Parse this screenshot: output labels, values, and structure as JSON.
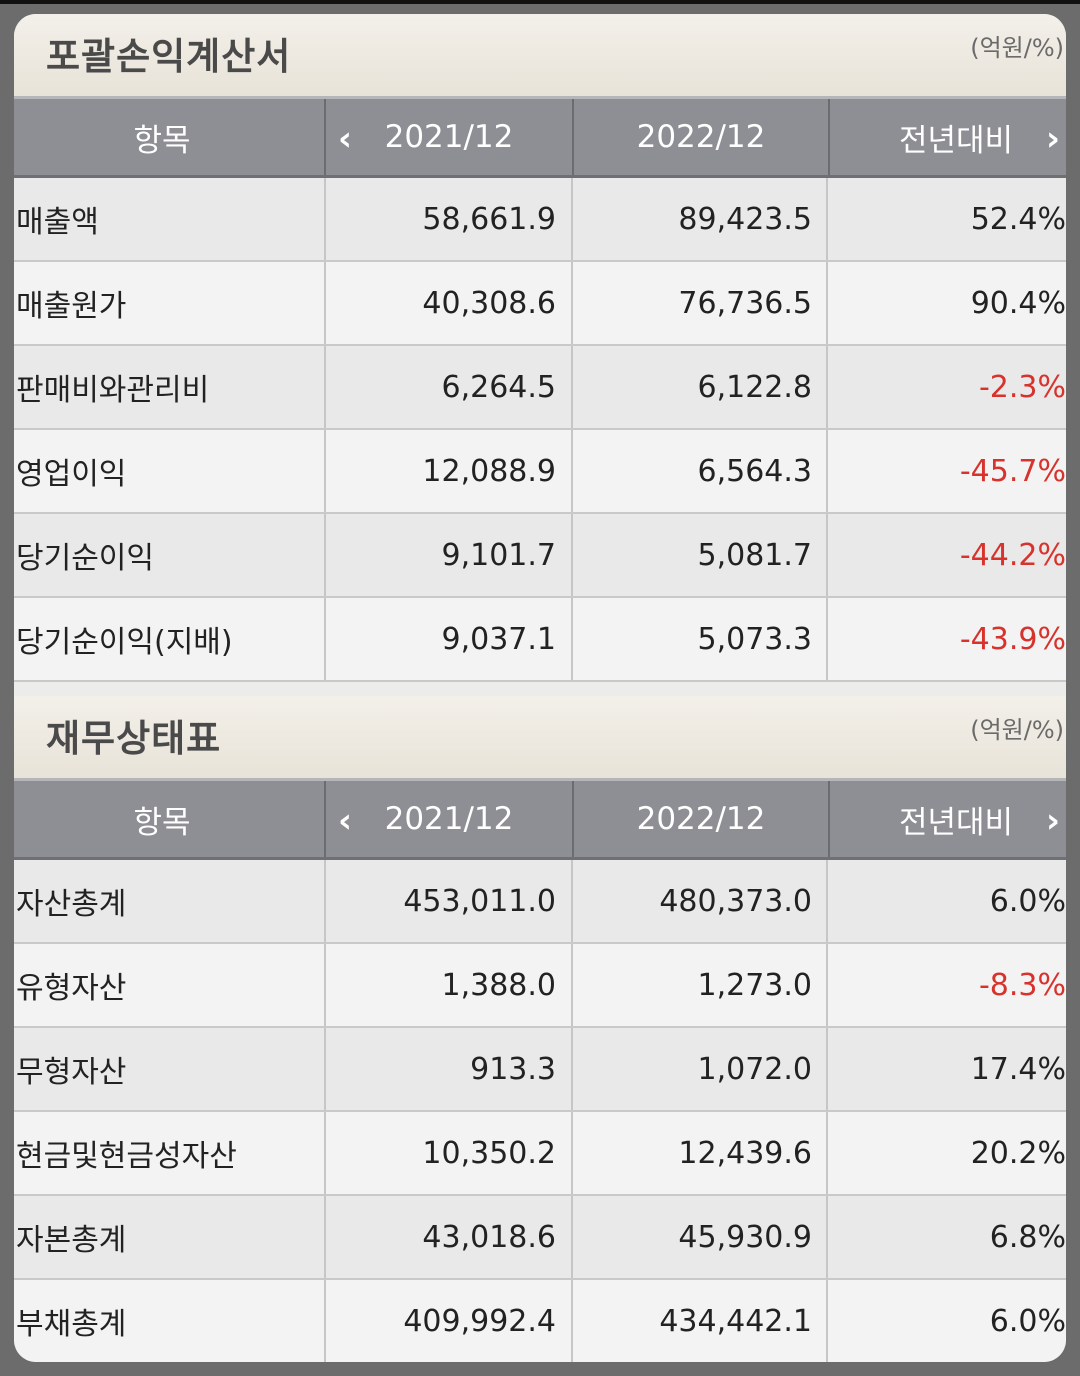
{
  "income": {
    "title": "포괄손익계산서",
    "unit": "(억원/%)",
    "headers": {
      "item": "항목",
      "col1": "2021/12",
      "col2": "2022/12",
      "col3": "전년대비"
    },
    "rows": [
      {
        "label": "매출액",
        "v1": "58,661.9",
        "v2": "89,423.5",
        "yoy": "52.4%",
        "negative": false
      },
      {
        "label": "매출원가",
        "v1": "40,308.6",
        "v2": "76,736.5",
        "yoy": "90.4%",
        "negative": false
      },
      {
        "label": "판매비와관리비",
        "v1": "6,264.5",
        "v2": "6,122.8",
        "yoy": "-2.3%",
        "negative": true
      },
      {
        "label": "영업이익",
        "v1": "12,088.9",
        "v2": "6,564.3",
        "yoy": "-45.7%",
        "negative": true
      },
      {
        "label": "당기순이익",
        "v1": "9,101.7",
        "v2": "5,081.7",
        "yoy": "-44.2%",
        "negative": true
      },
      {
        "label": "당기순이익(지배)",
        "v1": "9,037.1",
        "v2": "5,073.3",
        "yoy": "-43.9%",
        "negative": true
      }
    ]
  },
  "balance": {
    "title": "재무상태표",
    "unit": "(억원/%)",
    "headers": {
      "item": "항목",
      "col1": "2021/12",
      "col2": "2022/12",
      "col3": "전년대비"
    },
    "rows": [
      {
        "label": "자산총계",
        "v1": "453,011.0",
        "v2": "480,373.0",
        "yoy": "6.0%",
        "negative": false
      },
      {
        "label": "유형자산",
        "v1": "1,388.0",
        "v2": "1,273.0",
        "yoy": "-8.3%",
        "negative": true
      },
      {
        "label": "무형자산",
        "v1": "913.3",
        "v2": "1,072.0",
        "yoy": "17.4%",
        "negative": false
      },
      {
        "label": "현금및현금성자산",
        "v1": "10,350.2",
        "v2": "12,439.6",
        "yoy": "20.2%",
        "negative": false
      },
      {
        "label": "자본총계",
        "v1": "43,018.6",
        "v2": "45,930.9",
        "yoy": "6.8%",
        "negative": false
      },
      {
        "label": "부채총계",
        "v1": "409,992.4",
        "v2": "434,442.1",
        "yoy": "6.0%",
        "negative": false
      }
    ]
  },
  "icons": {
    "prev": "chevron-left-icon",
    "next": "chevron-right-icon"
  }
}
